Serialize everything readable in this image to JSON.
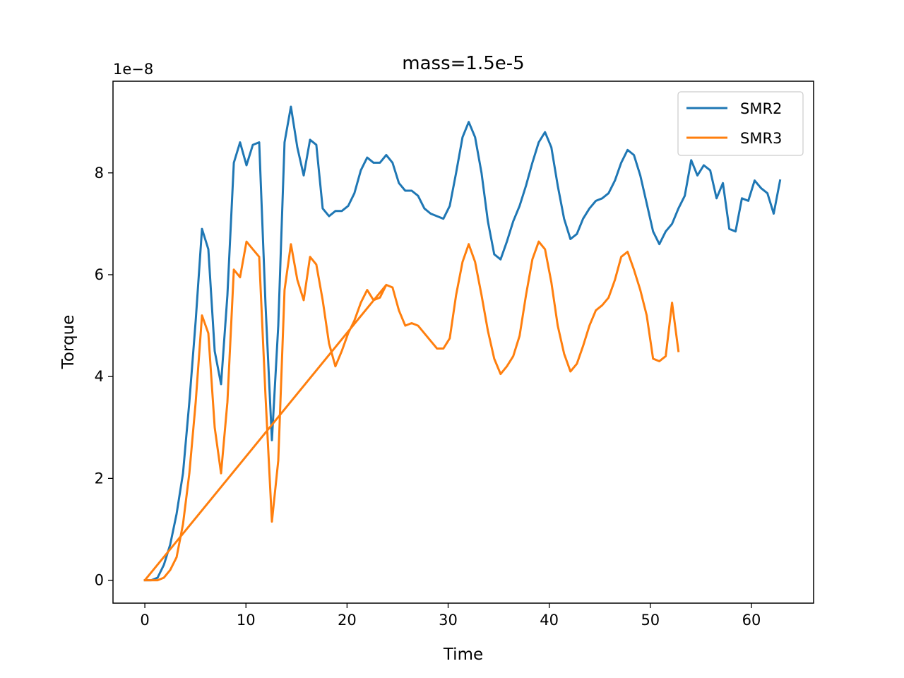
{
  "chart_data": {
    "type": "line",
    "title": "mass=1.5e-5",
    "xlabel": "Time",
    "ylabel": "Torque",
    "y_multiplier_label": "1e−8",
    "xlim": [
      -3.15,
      66.15
    ],
    "ylim": [
      -0.45,
      9.8
    ],
    "xticks": [
      0,
      10,
      20,
      30,
      40,
      50,
      60
    ],
    "xtick_labels": [
      "0",
      "10",
      "20",
      "30",
      "40",
      "50",
      "60"
    ],
    "yticks": [
      0,
      2,
      4,
      6,
      8
    ],
    "ytick_labels": [
      "0",
      "2",
      "4",
      "6",
      "8"
    ],
    "grid": false,
    "legend_position": "upper right",
    "series": [
      {
        "name": "SMR2",
        "color": "#1f77b4",
        "x": [
          0,
          0.63,
          1.26,
          1.88,
          2.51,
          3.14,
          3.77,
          4.4,
          5.03,
          5.65,
          6.28,
          6.91,
          7.54,
          8.17,
          8.8,
          9.42,
          10.05,
          10.68,
          11.31,
          11.94,
          12.57,
          13.2,
          13.82,
          14.45,
          15.08,
          15.71,
          16.34,
          16.96,
          17.59,
          18.22,
          18.85,
          19.48,
          20.11,
          20.73,
          21.36,
          21.99,
          22.62,
          23.25,
          23.88,
          24.5,
          25.13,
          25.76,
          26.39,
          27.02,
          27.65,
          28.27,
          28.9,
          29.53,
          30.16,
          30.79,
          31.42,
          32.04,
          32.67,
          33.3,
          33.93,
          34.56,
          35.19,
          35.81,
          36.44,
          37.07,
          37.7,
          38.33,
          38.96,
          39.58,
          40.21,
          40.84,
          41.47,
          42.1,
          42.73,
          43.35,
          43.98,
          44.61,
          45.24,
          45.87,
          46.5,
          47.12,
          47.75,
          48.38,
          49.01,
          49.64,
          50.27,
          50.89,
          51.52,
          52.15,
          52.78,
          53.41,
          54.04,
          54.66,
          55.29,
          55.92,
          56.55,
          57.18,
          57.81,
          58.43,
          59.06,
          59.69,
          60.32,
          60.95,
          61.58,
          62.2,
          62.83
        ],
        "values": [
          0,
          0,
          0.05,
          0.3,
          0.7,
          1.3,
          2.1,
          3.5,
          5.1,
          6.9,
          6.5,
          4.5,
          3.85,
          5.6,
          8.2,
          8.6,
          8.15,
          8.55,
          8.6,
          5.4,
          2.75,
          5.0,
          8.6,
          9.3,
          8.5,
          7.95,
          8.65,
          8.55,
          7.3,
          7.15,
          7.25,
          7.25,
          7.35,
          7.6,
          8.05,
          8.3,
          8.2,
          8.2,
          8.35,
          8.2,
          7.8,
          7.65,
          7.65,
          7.55,
          7.3,
          7.2,
          7.15,
          7.1,
          7.35,
          8.0,
          8.7,
          9.0,
          8.7,
          8.0,
          7.05,
          6.4,
          6.3,
          6.65,
          7.05,
          7.35,
          7.75,
          8.2,
          8.6,
          8.8,
          8.5,
          7.75,
          7.1,
          6.7,
          6.8,
          7.1,
          7.3,
          7.45,
          7.5,
          7.6,
          7.85,
          8.2,
          8.45,
          8.35,
          7.95,
          7.4,
          6.85,
          6.6,
          6.85,
          7.0,
          7.3,
          7.55,
          8.25,
          7.95,
          8.15,
          8.05,
          7.5,
          7.8,
          6.9,
          6.85,
          7.5,
          7.45,
          7.85,
          7.7,
          7.6,
          7.2,
          7.85
        ]
      },
      {
        "name": "SMR3",
        "color": "#ff7f0e",
        "x": [
          0,
          0.63,
          1.26,
          1.88,
          2.51,
          3.14,
          3.77,
          4.4,
          5.03,
          5.65,
          6.28,
          6.91,
          7.54,
          8.17,
          8.8,
          9.42,
          10.05,
          10.68,
          11.31,
          11.94,
          12.57,
          13.2,
          13.82,
          14.45,
          15.08,
          15.71,
          16.34,
          16.96,
          17.59,
          18.22,
          18.85,
          19.48,
          20.11,
          20.73,
          21.36,
          21.99,
          22.62,
          23.25,
          23.88,
          0,
          23.88,
          24.5,
          25.13,
          25.76,
          26.39,
          27.02,
          27.65,
          28.27,
          28.9,
          29.53,
          30.16,
          30.79,
          31.42,
          32.04,
          32.67,
          33.3,
          33.93,
          34.56,
          35.19,
          35.81,
          36.44,
          37.07,
          37.7,
          38.33,
          38.96,
          39.58,
          40.21,
          40.84,
          41.47,
          42.1,
          42.73,
          43.35,
          43.98,
          44.61,
          45.24,
          45.87,
          46.5,
          47.12,
          47.75,
          48.38,
          49.01,
          49.64,
          50.27,
          50.89,
          51.52,
          52.15,
          52.78
        ],
        "values": [
          0,
          0,
          0,
          0.05,
          0.2,
          0.45,
          1.1,
          2.1,
          3.5,
          5.2,
          4.85,
          3.0,
          2.1,
          3.5,
          6.1,
          5.95,
          6.65,
          6.5,
          6.35,
          3.6,
          1.15,
          2.35,
          5.7,
          6.6,
          5.9,
          5.5,
          6.35,
          6.2,
          5.5,
          4.65,
          4.2,
          4.5,
          4.85,
          5.1,
          5.45,
          5.7,
          5.5,
          5.55,
          5.8,
          0,
          5.8,
          5.75,
          5.3,
          5.0,
          5.05,
          5.0,
          4.85,
          4.7,
          4.55,
          4.55,
          4.75,
          5.6,
          6.25,
          6.6,
          6.25,
          5.6,
          4.9,
          4.35,
          4.05,
          4.2,
          4.4,
          4.8,
          5.6,
          6.3,
          6.65,
          6.5,
          5.85,
          5.0,
          4.45,
          4.1,
          4.25,
          4.6,
          5.0,
          5.3,
          5.4,
          5.55,
          5.9,
          6.35,
          6.45,
          6.1,
          5.7,
          5.2,
          4.35,
          4.3,
          4.4,
          5.45,
          4.5
        ]
      }
    ]
  }
}
